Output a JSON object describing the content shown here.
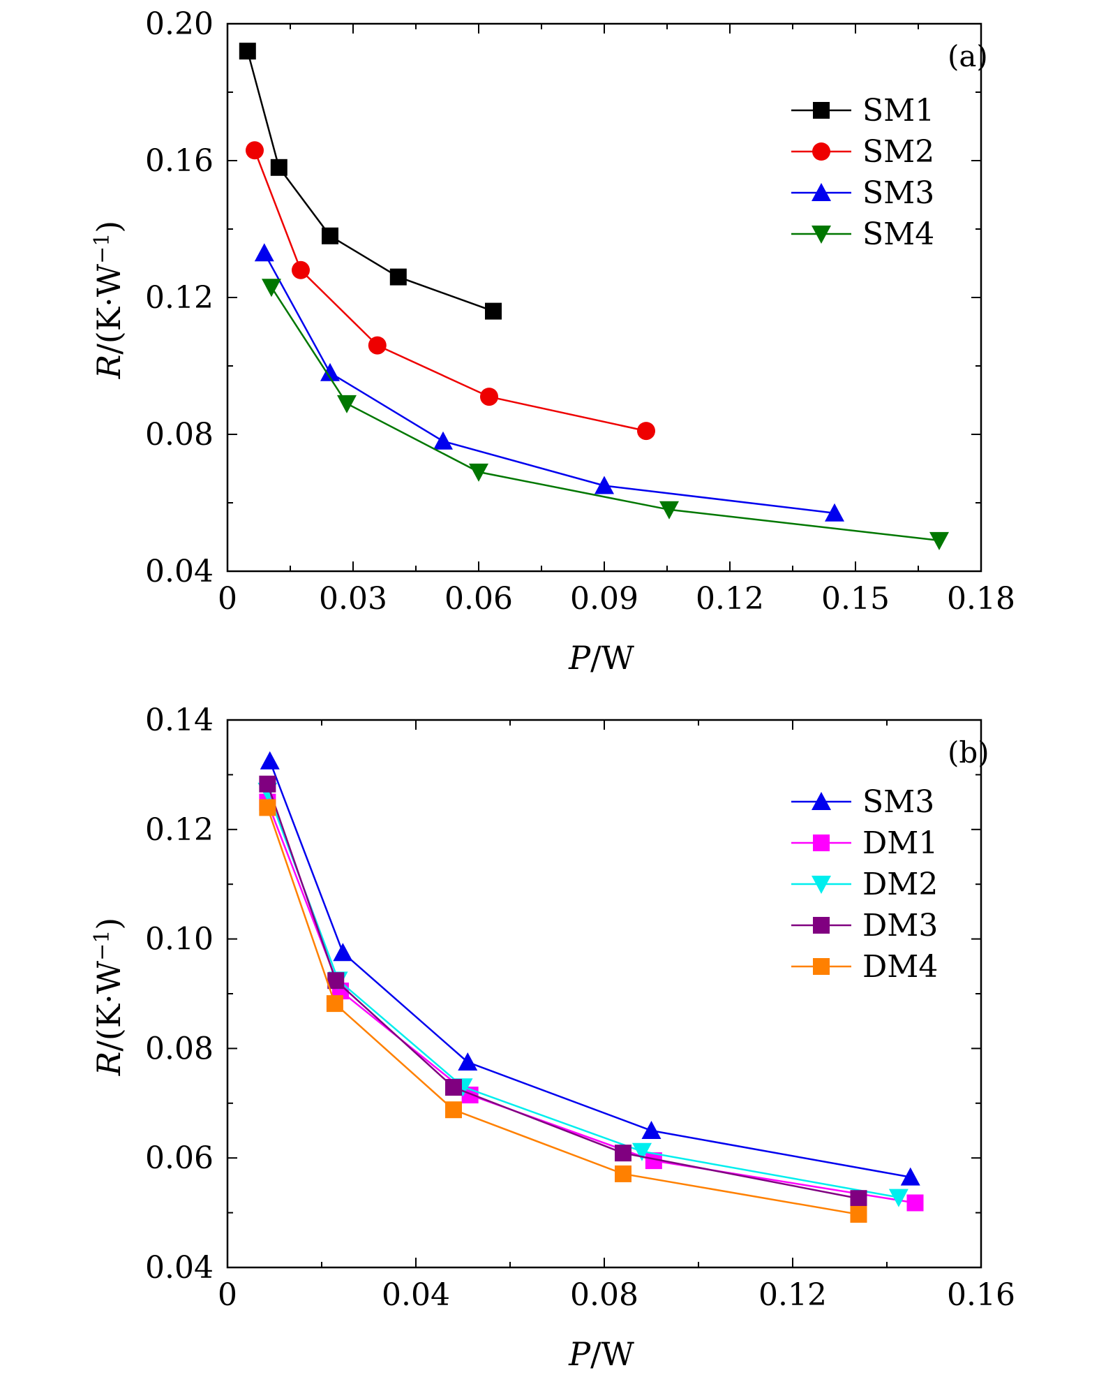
{
  "chart_data": [
    {
      "type": "line",
      "panel_label": "(a)",
      "xlabel_var": "P",
      "xlabel_unit": "/W",
      "ylabel_var": "R",
      "ylabel_unit": "/(K·W",
      "ylabel_exp": "−1",
      "ylabel_close": ")",
      "xlim": [
        0,
        0.18
      ],
      "ylim": [
        0.04,
        0.2
      ],
      "xticks": [
        0,
        0.03,
        0.06,
        0.09,
        0.12,
        0.15,
        0.18
      ],
      "xtick_labels": [
        "0",
        "0.03",
        "0.06",
        "0.09",
        "0.12",
        "0.15",
        "0.18"
      ],
      "yticks": [
        0.04,
        0.08,
        0.12,
        0.16,
        0.2
      ],
      "ytick_labels": [
        "0.04",
        "0.08",
        "0.12",
        "0.16",
        "0.20"
      ],
      "legend_position": "top-right",
      "series": [
        {
          "name": "SM1",
          "color": "#000000",
          "marker": "square",
          "x": [
            0.0048,
            0.0123,
            0.0245,
            0.0408,
            0.0635
          ],
          "y": [
            0.192,
            0.158,
            0.138,
            0.126,
            0.116
          ]
        },
        {
          "name": "SM2",
          "color": "#ee0000",
          "marker": "circle",
          "x": [
            0.0065,
            0.0175,
            0.0358,
            0.0625,
            0.1
          ],
          "y": [
            0.163,
            0.128,
            0.106,
            0.091,
            0.081
          ]
        },
        {
          "name": "SM3",
          "color": "#0000ee",
          "marker": "triangle-up",
          "x": [
            0.0088,
            0.0245,
            0.0515,
            0.09,
            0.145
          ],
          "y": [
            0.133,
            0.098,
            0.078,
            0.065,
            0.057
          ]
        },
        {
          "name": "SM4",
          "color": "#007700",
          "marker": "triangle-down",
          "x": [
            0.0105,
            0.0285,
            0.06,
            0.1055,
            0.17
          ],
          "y": [
            0.123,
            0.089,
            0.069,
            0.058,
            0.049
          ]
        }
      ]
    },
    {
      "type": "line",
      "panel_label": "(b)",
      "xlabel_var": "P",
      "xlabel_unit": "/W",
      "ylabel_var": "R",
      "ylabel_unit": "/(K·W",
      "ylabel_exp": "−1",
      "ylabel_close": ")",
      "xlim": [
        0,
        0.16
      ],
      "ylim": [
        0.04,
        0.14
      ],
      "xticks": [
        0,
        0.04,
        0.08,
        0.12,
        0.16
      ],
      "xtick_labels": [
        "0",
        "0.04",
        "0.08",
        "0.12",
        "0.16"
      ],
      "yticks": [
        0.04,
        0.06,
        0.08,
        0.1,
        0.12,
        0.14
      ],
      "ytick_labels": [
        "0.04",
        "0.06",
        "0.08",
        "0.10",
        "0.12",
        "0.14"
      ],
      "legend_position": "top-right",
      "series": [
        {
          "name": "SM3",
          "color": "#0000ee",
          "marker": "triangle-up",
          "x": [
            0.009,
            0.0245,
            0.051,
            0.09,
            0.145
          ],
          "y": [
            0.1325,
            0.0975,
            0.0775,
            0.065,
            0.0565
          ]
        },
        {
          "name": "DM1",
          "color": "#ff00ff",
          "marker": "square",
          "x": [
            0.0085,
            0.024,
            0.0515,
            0.0905,
            0.146
          ],
          "y": [
            0.125,
            0.0905,
            0.0715,
            0.0595,
            0.0518
          ]
        },
        {
          "name": "DM2",
          "color": "#00eeee",
          "marker": "triangle-down",
          "x": [
            0.0085,
            0.0235,
            0.05,
            0.088,
            0.1425
          ],
          "y": [
            0.127,
            0.0925,
            0.073,
            0.0612,
            0.0528
          ]
        },
        {
          "name": "DM3",
          "color": "#800080",
          "marker": "square",
          "x": [
            0.0085,
            0.023,
            0.048,
            0.084,
            0.134
          ],
          "y": [
            0.1283,
            0.0924,
            0.0729,
            0.0609,
            0.0526
          ]
        },
        {
          "name": "DM4",
          "color": "#ff8000",
          "marker": "square",
          "x": [
            0.0085,
            0.0228,
            0.048,
            0.084,
            0.134
          ],
          "y": [
            0.124,
            0.0882,
            0.0688,
            0.0571,
            0.0497
          ]
        }
      ]
    }
  ]
}
